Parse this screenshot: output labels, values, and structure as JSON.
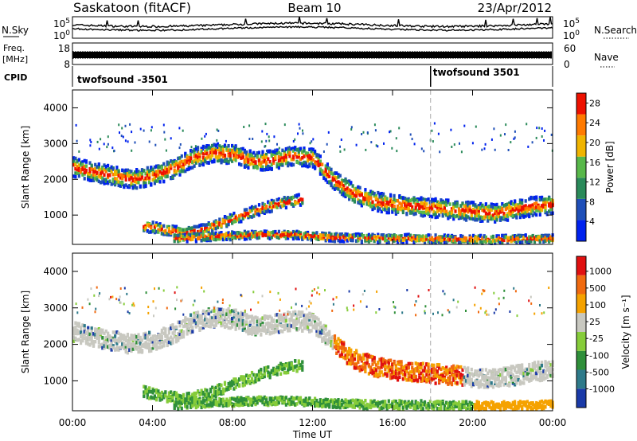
{
  "header": {
    "station": "Saskatoon (fitACF)",
    "beam": "Beam 10",
    "date": "23/Apr/2012"
  },
  "chart_data": [
    {
      "type": "line",
      "panel": "noise",
      "left_label": "N.Sky",
      "right_label": "N.Search",
      "left_ticks": [
        "10^5",
        "10^0"
      ],
      "right_ticks": [
        "10^5",
        "10^0"
      ],
      "scale": "log",
      "color": "#000000"
    },
    {
      "type": "line",
      "panel": "frequency",
      "left_label": "Freq.",
      "left_unit": "[MHz]",
      "right_label": "Nave",
      "left_ticks": [
        18,
        8
      ],
      "right_ticks": [
        60,
        0
      ],
      "color": "#000000"
    },
    {
      "type": "table",
      "panel": "cpid",
      "label": "CPID",
      "segments": [
        {
          "name": "twofsound -3501",
          "start_hour": 0
        },
        {
          "name": "twofsound 3501",
          "start_hour": 17.9
        }
      ]
    },
    {
      "type": "heatmap",
      "panel": "power",
      "ylabel": "Slant Range [km]",
      "ylim": [
        180,
        4500
      ],
      "yticks": [
        1000,
        2000,
        3000,
        4000
      ],
      "colorbar_label": "Power [dB]",
      "colorbar_ticks": [
        4,
        8,
        12,
        16,
        20,
        24,
        28
      ],
      "colorbar_range": [
        0,
        30
      ],
      "colors": [
        "#0022ee",
        "#1f4fb8",
        "#2a8a5a",
        "#58b84a",
        "#f0b400",
        "#ff7a00",
        "#ee1100"
      ]
    },
    {
      "type": "heatmap",
      "panel": "velocity",
      "ylabel": "Slant Range [km]",
      "ylim": [
        180,
        4500
      ],
      "yticks": [
        1000,
        2000,
        3000,
        4000
      ],
      "colorbar_label": "Velocity [m s⁻¹]",
      "colorbar_ticks": [
        "1000",
        "500",
        "100",
        "25",
        "-25",
        "-100",
        "-500",
        "-1000"
      ],
      "colors": [
        "#1a3aa8",
        "#2e7a8a",
        "#2f8f3a",
        "#86cc3a",
        "#c8c8c0",
        "#f5a200",
        "#f06a10",
        "#e01010"
      ]
    }
  ],
  "x_axis": {
    "label": "Time UT",
    "ticks": [
      "00:00",
      "04:00",
      "08:00",
      "12:00",
      "16:00",
      "20:00",
      "00:00"
    ],
    "xlim_hours": [
      0,
      24
    ]
  },
  "echo_bands": [
    {
      "name": "main-arc",
      "points": [
        [
          0,
          2350
        ],
        [
          1,
          2200
        ],
        [
          2,
          2100
        ],
        [
          3,
          2000
        ],
        [
          4,
          2100
        ],
        [
          5,
          2300
        ],
        [
          6,
          2600
        ],
        [
          7,
          2750
        ],
        [
          8,
          2700
        ],
        [
          9,
          2500
        ],
        [
          10,
          2550
        ],
        [
          11,
          2650
        ],
        [
          12,
          2600
        ],
        [
          13,
          2000
        ],
        [
          14,
          1600
        ],
        [
          15,
          1400
        ],
        [
          16,
          1300
        ],
        [
          17,
          1250
        ],
        [
          18,
          1200
        ],
        [
          19,
          1150
        ],
        [
          20,
          1100
        ],
        [
          21,
          1050
        ],
        [
          22,
          1150
        ],
        [
          23,
          1250
        ],
        [
          24,
          1300
        ]
      ]
    },
    {
      "name": "lower-arc",
      "points": [
        [
          3.5,
          700
        ],
        [
          4.5,
          600
        ],
        [
          5.5,
          500
        ],
        [
          6.5,
          600
        ],
        [
          7.5,
          800
        ],
        [
          8.5,
          1000
        ],
        [
          9.5,
          1200
        ],
        [
          10.5,
          1350
        ],
        [
          11.5,
          1450
        ]
      ]
    },
    {
      "name": "near-range",
      "points": [
        [
          5,
          350
        ],
        [
          7,
          400
        ],
        [
          9,
          450
        ],
        [
          11,
          450
        ],
        [
          13,
          380
        ],
        [
          15,
          350
        ],
        [
          17,
          350
        ],
        [
          19,
          330
        ],
        [
          21,
          320
        ],
        [
          24,
          350
        ]
      ]
    }
  ]
}
